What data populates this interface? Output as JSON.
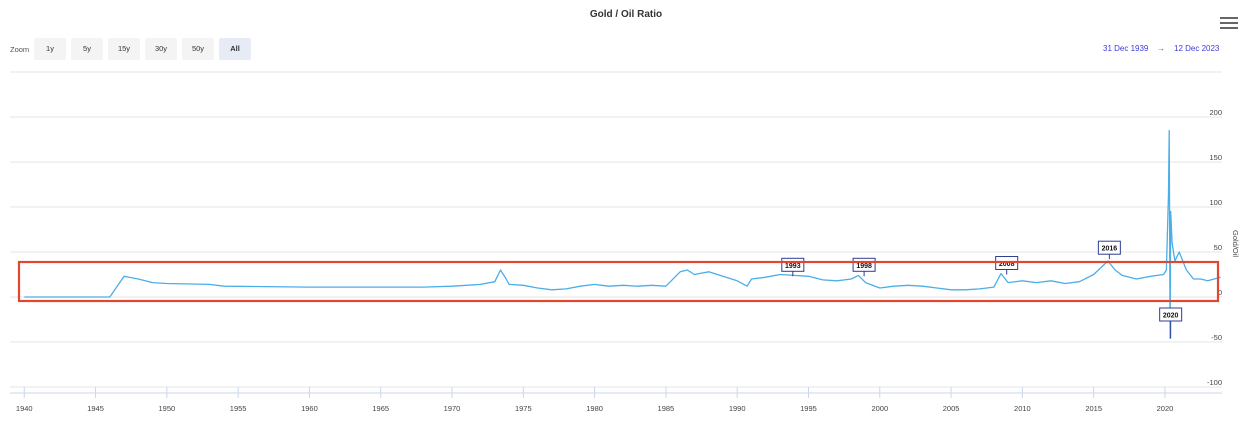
{
  "toolbar": {
    "zoom_label": "Zoom",
    "buttons": [
      "1y",
      "5y",
      "15y",
      "30y",
      "50y",
      "All"
    ],
    "active_button": "All",
    "range_from": "31 Dec 1939",
    "range_arrow": "→",
    "range_to": "12 Dec 2023"
  },
  "colors": {
    "series": "#4aaee8",
    "flag_border": "#2f3d94",
    "highlight_box": "#e0472e",
    "range_text": "#3c3cdc"
  },
  "chart_data": {
    "type": "line",
    "title": "Gold / Oil Ratio",
    "ylabel": "Gold/Oil",
    "xlabel": "",
    "xlim": [
      1939.0,
      2024.0
    ],
    "ylim": [
      -100,
      200
    ],
    "y_ticks": [
      200,
      150,
      100,
      50,
      0,
      -50,
      -100
    ],
    "x_ticks": [
      1940,
      1945,
      1950,
      1955,
      1960,
      1965,
      1970,
      1975,
      1980,
      1985,
      1990,
      1995,
      2000,
      2005,
      2010,
      2015,
      2020
    ],
    "grid": true,
    "legend": "none",
    "series": [
      {
        "x": [
          1940,
          1946,
          1947,
          1948,
          1949,
          1950,
          1953,
          1954,
          1960,
          1968,
          1970,
          1971,
          1972,
          1973,
          1973.4,
          1973.8,
          1974,
          1975,
          1976,
          1977,
          1978,
          1979,
          1980,
          1980.5,
          1981,
          1982,
          1983,
          1984,
          1985,
          1986,
          1986.5,
          1987,
          1988,
          1989,
          1990,
          1990.7,
          1991,
          1992,
          1993,
          1994,
          1995,
          1996,
          1997,
          1998,
          1998.5,
          1999,
          2000,
          2001,
          2002,
          2003,
          2004,
          2005,
          2006,
          2007,
          2008,
          2008.5,
          2009,
          2010,
          2011,
          2012,
          2013,
          2014,
          2015,
          2016,
          2016.5,
          2017,
          2018,
          2019,
          2019.9,
          2020.1,
          2020.25,
          2020.3,
          2020.33,
          2020.36,
          2020.4,
          2020.5,
          2020.7,
          2021,
          2021.5,
          2022,
          2022.5,
          2023,
          2023.9
        ],
        "y": [
          0,
          0,
          23,
          20,
          16,
          15,
          14,
          12,
          11,
          11,
          12,
          13,
          14,
          17,
          30,
          20,
          14,
          13,
          10,
          8,
          9,
          12,
          14,
          13,
          12,
          13,
          12,
          13,
          12,
          28,
          30,
          25,
          28,
          23,
          18,
          12,
          20,
          22,
          25,
          24,
          23,
          19,
          18,
          20,
          24,
          16,
          10,
          12,
          13,
          12,
          10,
          8,
          8,
          9,
          11,
          26,
          16,
          18,
          16,
          18,
          15,
          17,
          25,
          40,
          30,
          24,
          20,
          23,
          25,
          30,
          115,
          185,
          60,
          -46,
          95,
          60,
          40,
          50,
          30,
          20,
          20,
          18,
          22
        ]
      }
    ],
    "annotations": [
      {
        "label": "1993",
        "x": 1993.9,
        "y": 23
      },
      {
        "label": "1998",
        "x": 1998.9,
        "y": 23
      },
      {
        "label": "2008",
        "x": 2008.9,
        "y": 25
      },
      {
        "label": "2016",
        "x": 2016.1,
        "y": 42
      },
      {
        "label": "2020",
        "x": 2020.4,
        "y": -46
      }
    ]
  }
}
